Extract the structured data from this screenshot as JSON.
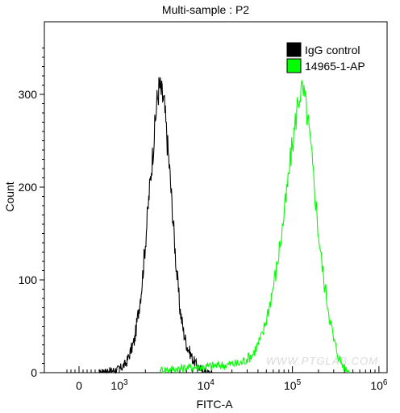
{
  "chart_data": {
    "type": "line",
    "title": "Multi-sample : P2",
    "xlabel": "FITC-A",
    "ylabel": "Count",
    "x_scale": "biexponential",
    "xlim": [
      -300,
      1000000
    ],
    "ylim": [
      0,
      360
    ],
    "x_ticks": [
      {
        "label": "0",
        "value": 0
      },
      {
        "label": "10",
        "sup": "3",
        "value": 1000
      },
      {
        "label": "10",
        "sup": "4",
        "value": 10000
      },
      {
        "label": "10",
        "sup": "5",
        "value": 100000
      },
      {
        "label": "10",
        "sup": "6",
        "value": 1000000
      }
    ],
    "y_ticks": [
      0,
      100,
      200,
      300
    ],
    "legend_position": "top-right",
    "grid": false,
    "watermark": "WWW.PTGLAB.COM",
    "series": [
      {
        "name": "IgG control",
        "color": "#000000",
        "x": [
          500,
          800,
          1000,
          1200,
          1500,
          1800,
          2000,
          2200,
          2500,
          2700,
          2900,
          3100,
          3300,
          3500,
          3800,
          4100,
          4500,
          5000,
          5500,
          6000,
          7000,
          8000,
          9000,
          10000,
          11000,
          12500
        ],
        "y": [
          0,
          2,
          4,
          10,
          35,
          90,
          140,
          190,
          250,
          290,
          310,
          300,
          290,
          260,
          220,
          175,
          120,
          70,
          45,
          30,
          15,
          7,
          3,
          1,
          0,
          0
        ]
      },
      {
        "name": "14965-1-AP",
        "color": "#00ff00",
        "x": [
          3000,
          8000,
          15000,
          25000,
          35000,
          45000,
          55000,
          65000,
          75000,
          85000,
          95000,
          105000,
          115000,
          125000,
          135000,
          145000,
          160000,
          180000,
          200000,
          230000,
          260000,
          300000,
          350000,
          400000,
          450000
        ],
        "y": [
          3,
          6,
          8,
          10,
          20,
          40,
          75,
          110,
          150,
          190,
          230,
          260,
          290,
          305,
          300,
          285,
          250,
          200,
          150,
          100,
          70,
          35,
          15,
          5,
          1
        ]
      }
    ]
  }
}
